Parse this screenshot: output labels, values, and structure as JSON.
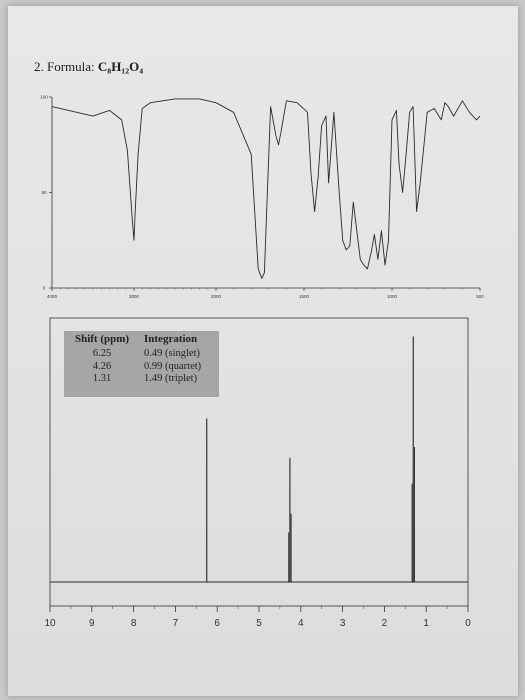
{
  "title": {
    "prefix": "2. Formula: ",
    "formula": "C₈H₁₂O₄"
  },
  "chart_data": [
    {
      "type": "line",
      "title": "",
      "xlabel": "",
      "ylabel": "",
      "x_ticks": [
        "4000",
        "3000",
        "2000",
        "1500",
        "1000",
        "500"
      ],
      "y_ticks": [
        "100",
        "50",
        "0"
      ],
      "xlim": [
        4000,
        500
      ],
      "ylim": [
        0,
        100
      ],
      "series": [
        {
          "x": [
            4000,
            3700,
            3500,
            3300,
            3150,
            3080,
            3020,
            3000,
            2985,
            2950,
            2900,
            2800,
            2500,
            2200,
            2000,
            1900,
            1800,
            1760,
            1740,
            1725,
            1710,
            1690,
            1660,
            1645,
            1630,
            1600,
            1540,
            1480,
            1460,
            1440,
            1420,
            1400,
            1375,
            1360,
            1330,
            1300,
            1280,
            1260,
            1240,
            1220,
            1200,
            1180,
            1160,
            1140,
            1120,
            1100,
            1080,
            1060,
            1040,
            1020,
            1000,
            975,
            960,
            940,
            920,
            900,
            880,
            860,
            840,
            800,
            760,
            720,
            700,
            680,
            650,
            600,
            560,
            520,
            500
          ],
          "y": [
            95,
            92,
            90,
            93,
            88,
            72,
            35,
            25,
            40,
            70,
            94,
            97,
            99,
            99,
            97,
            92,
            70,
            10,
            5,
            8,
            45,
            95,
            80,
            75,
            82,
            98,
            97,
            92,
            60,
            40,
            58,
            85,
            90,
            55,
            92,
            50,
            25,
            20,
            22,
            45,
            30,
            15,
            12,
            10,
            18,
            28,
            15,
            30,
            12,
            25,
            88,
            93,
            65,
            50,
            70,
            92,
            95,
            40,
            55,
            92,
            94,
            88,
            97,
            95,
            90,
            98,
            92,
            88,
            90
          ]
        }
      ]
    },
    {
      "type": "line",
      "title": "",
      "xlabel": "",
      "ylabel": "",
      "x_ticks": [
        "10",
        "9",
        "8",
        "7",
        "6",
        "5",
        "4",
        "3",
        "2",
        "1",
        "0"
      ],
      "xlim": [
        10,
        0
      ],
      "peaks": [
        {
          "shift": 6.25,
          "height": 0.62
        },
        {
          "shift": 4.26,
          "height": 0.47
        },
        {
          "shift": 1.31,
          "height": 0.93
        }
      ],
      "table": {
        "headers": [
          "Shift (ppm)",
          "Integration"
        ],
        "rows": [
          [
            "6.25",
            "0.49 (singlet)"
          ],
          [
            "4.26",
            "0.99 (quartet)"
          ],
          [
            "1.31",
            "1.49 (triplet)"
          ]
        ]
      }
    }
  ]
}
